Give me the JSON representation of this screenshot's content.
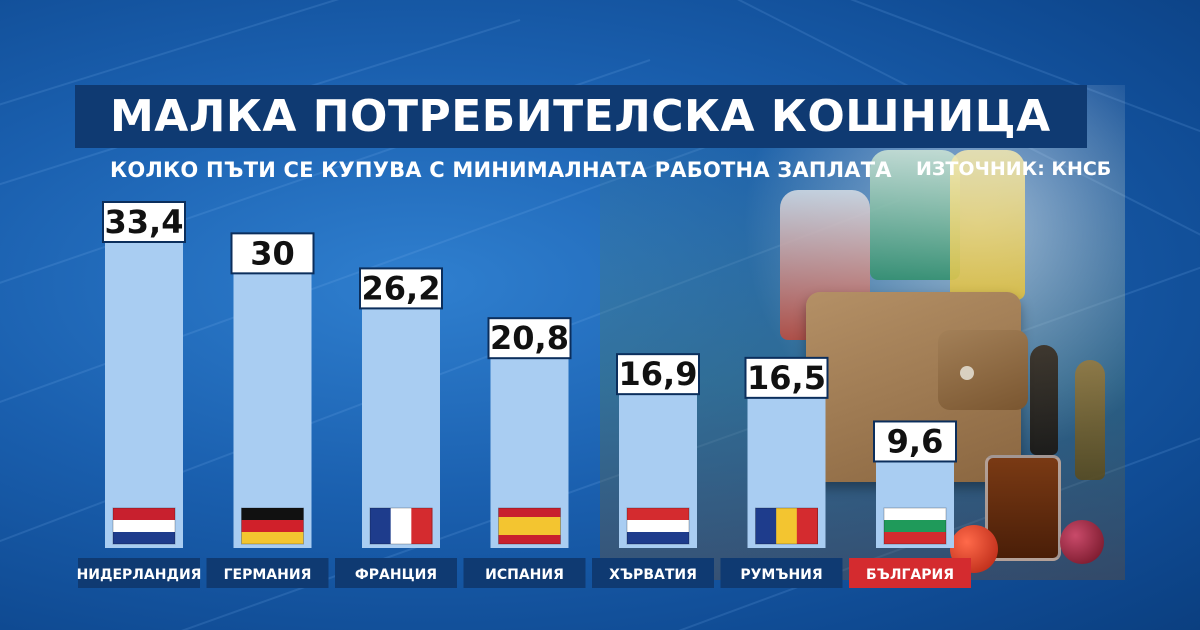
{
  "title": "МАЛКА ПОТРЕБИТЕЛСКА КОШНИЦА",
  "subtitle": "КОЛКО ПЪТИ СЕ КУПУВА С МИНИМАЛНАТА РАБОТНА ЗАПЛАТА",
  "source": "ИЗТОЧНИК: КНСБ",
  "colors": {
    "bar": "#a9cdf2",
    "label_bg": "#0f3a72",
    "highlight_label_bg": "#d42b2f",
    "value_box": "#ffffff",
    "value_text": "#111111"
  },
  "chart_data": {
    "type": "bar",
    "title": "МАЛКА ПОТРЕБИТЕЛСКА КОШНИЦА",
    "subtitle": "КОЛКО ПЪТИ СЕ КУПУВА С МИНИМАЛНАТА РАБОТНА ЗАПЛАТА",
    "categories": [
      "НИДЕРЛАНДИЯ",
      "ГЕРМАНИЯ",
      "ФРАНЦИЯ",
      "ИСПАНИЯ",
      "ХЪРВАТИЯ",
      "РУМЪНИЯ",
      "БЪЛГАРИЯ"
    ],
    "values": [
      33.4,
      30,
      26.2,
      20.8,
      16.9,
      16.5,
      9.6
    ],
    "value_labels": [
      "33,4",
      "30",
      "26,2",
      "20,8",
      "16,9",
      "16,5",
      "9,6"
    ],
    "flags": [
      "netherlands-flag",
      "germany-flag",
      "france-flag",
      "spain-flag",
      "croatia-flag",
      "romania-flag",
      "bulgaria-flag"
    ],
    "highlight": "БЪЛГАРИЯ",
    "grid": false,
    "legend": "none"
  }
}
